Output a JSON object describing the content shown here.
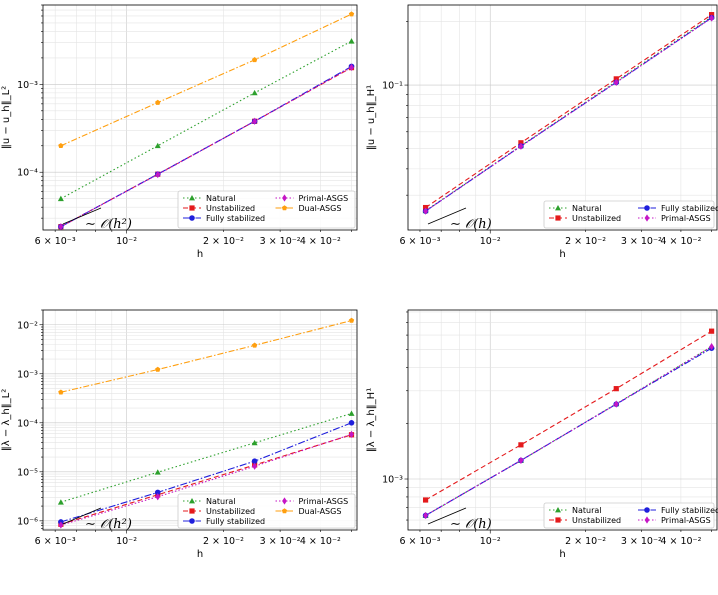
{
  "chart_data": [
    {
      "id": "p1",
      "type": "line",
      "xscale": "log",
      "yscale": "log",
      "xlabel": "h",
      "ylabel": "‖u − u_h‖_L²",
      "xlim": [
        0.0055,
        0.052
      ],
      "ylim": [
        2.2e-05,
        0.008
      ],
      "x": [
        0.00625,
        0.0125,
        0.025,
        0.05
      ],
      "xticks": [
        {
          "v": 0.006,
          "label": "6 × 10⁻³"
        },
        {
          "v": 0.01,
          "label": "10⁻²"
        },
        {
          "v": 0.02,
          "label": "2 × 10⁻²"
        },
        {
          "v": 0.03,
          "label": "3 × 10⁻²"
        },
        {
          "v": 0.04,
          "label": "4 × 10⁻²"
        }
      ],
      "yticks": [
        {
          "v": 0.0001,
          "label": "10⁻⁴"
        },
        {
          "v": 0.001,
          "label": "10⁻³"
        }
      ],
      "series": [
        {
          "name": "Natural",
          "color": "#2ca02c",
          "dash": "1.5,2.5",
          "marker": "triangle",
          "values": [
            5e-05,
            0.0002,
            0.0008,
            0.0031
          ]
        },
        {
          "name": "Unstabilized",
          "color": "#e41a1c",
          "dash": "5,3",
          "marker": "square",
          "values": [
            2.4e-05,
            9.5e-05,
            0.00038,
            0.00155
          ]
        },
        {
          "name": "Fully stabilized",
          "color": "#1f1fdc",
          "dash": "7,2,1.5,2",
          "marker": "circle",
          "values": [
            2.4e-05,
            9.5e-05,
            0.00038,
            0.0016
          ]
        },
        {
          "name": "Primal-ASGS",
          "color": "#c516c5",
          "dash": "1.5,2",
          "marker": "diamond",
          "values": [
            2.4e-05,
            9.4e-05,
            0.00038,
            0.00156
          ]
        },
        {
          "name": "Dual-ASGS",
          "color": "#ff9f0f",
          "dash": "6,2,1.5,2",
          "marker": "pentagon",
          "values": [
            0.0002,
            0.00062,
            0.0019,
            0.0063
          ]
        }
      ],
      "annotation": "∼ 𝒪(h²)",
      "legend": {
        "loc": "lower-right",
        "columns": 2
      }
    },
    {
      "id": "p2",
      "type": "line",
      "xscale": "log",
      "yscale": "log",
      "xlabel": "h",
      "ylabel": "‖u − u_h‖_H¹",
      "xlim": [
        0.0055,
        0.052
      ],
      "ylim": [
        0.0205,
        0.24
      ],
      "x": [
        0.00625,
        0.0125,
        0.025,
        0.05
      ],
      "xticks": [
        {
          "v": 0.006,
          "label": "6 × 10⁻³"
        },
        {
          "v": 0.01,
          "label": "10⁻²"
        },
        {
          "v": 0.02,
          "label": "2 × 10⁻²"
        },
        {
          "v": 0.03,
          "label": "3 × 10⁻²"
        },
        {
          "v": 0.04,
          "label": "4 × 10⁻²"
        }
      ],
      "yticks": [
        {
          "v": 0.1,
          "label": "10⁻¹"
        }
      ],
      "series": [
        {
          "name": "Natural",
          "color": "#2ca02c",
          "dash": "1.5,2.5",
          "marker": "triangle",
          "values": [
            0.0253,
            0.0515,
            0.104,
            0.211
          ]
        },
        {
          "name": "Unstabilized",
          "color": "#e41a1c",
          "dash": "5,3",
          "marker": "square",
          "values": [
            0.0262,
            0.0532,
            0.107,
            0.216
          ]
        },
        {
          "name": "Fully stabilized",
          "color": "#1f1fdc",
          "dash": "7,2,1.5,2",
          "marker": "circle",
          "values": [
            0.0252,
            0.0513,
            0.103,
            0.209
          ]
        },
        {
          "name": "Primal-ASGS",
          "color": "#c516c5",
          "dash": "1.5,2",
          "marker": "diamond",
          "values": [
            0.0252,
            0.0512,
            0.103,
            0.208
          ]
        }
      ],
      "annotation": "∼ 𝒪(h)",
      "legend": {
        "loc": "lower-right",
        "columns": 2
      }
    },
    {
      "id": "p3",
      "type": "line",
      "xscale": "log",
      "yscale": "log",
      "xlabel": "h",
      "ylabel": "‖λ − λ_h‖_L²",
      "xlim": [
        0.0055,
        0.052
      ],
      "ylim": [
        6.5e-07,
        0.02
      ],
      "x": [
        0.00625,
        0.0125,
        0.025,
        0.05
      ],
      "xticks": [
        {
          "v": 0.006,
          "label": "6 × 10⁻³"
        },
        {
          "v": 0.01,
          "label": "10⁻²"
        },
        {
          "v": 0.02,
          "label": "2 × 10⁻²"
        },
        {
          "v": 0.03,
          "label": "3 × 10⁻²"
        },
        {
          "v": 0.04,
          "label": "4 × 10⁻²"
        }
      ],
      "yticks": [
        {
          "v": 1e-06,
          "label": "10⁻⁶"
        },
        {
          "v": 1e-05,
          "label": "10⁻⁵"
        },
        {
          "v": 0.0001,
          "label": "10⁻⁴"
        },
        {
          "v": 0.001,
          "label": "10⁻³"
        },
        {
          "v": 0.01,
          "label": "10⁻²"
        }
      ],
      "series": [
        {
          "name": "Natural",
          "color": "#2ca02c",
          "dash": "1.5,2.5",
          "marker": "triangle",
          "values": [
            2.4e-06,
            9.8e-06,
            3.9e-05,
            0.000155
          ]
        },
        {
          "name": "Unstabilized",
          "color": "#e41a1c",
          "dash": "5,3",
          "marker": "square",
          "values": [
            8.5e-07,
            3.4e-06,
            1.38e-05,
            5.7e-05
          ]
        },
        {
          "name": "Fully stabilized",
          "color": "#1f1fdc",
          "dash": "7,2,1.5,2",
          "marker": "circle",
          "values": [
            9.5e-07,
            3.8e-06,
            1.65e-05,
            0.0001
          ]
        },
        {
          "name": "Primal-ASGS",
          "color": "#c516c5",
          "dash": "1.5,2",
          "marker": "diamond",
          "values": [
            8.2e-07,
            3.1e-06,
            1.3e-05,
            5.8e-05
          ]
        },
        {
          "name": "Dual-ASGS",
          "color": "#ff9f0f",
          "dash": "6,2,1.5,2",
          "marker": "pentagon",
          "values": [
            0.00042,
            0.00122,
            0.0038,
            0.0122
          ]
        }
      ],
      "annotation": "∼ 𝒪(h²)",
      "legend": {
        "loc": "lower-right",
        "columns": 2
      }
    },
    {
      "id": "p4",
      "type": "line",
      "xscale": "log",
      "yscale": "log",
      "xlabel": "h",
      "ylabel": "‖λ − λ_h‖_H¹",
      "xlim": [
        0.0055,
        0.052
      ],
      "ylim": [
        0.00053,
        0.0082
      ],
      "x": [
        0.00625,
        0.0125,
        0.025,
        0.05
      ],
      "xticks": [
        {
          "v": 0.006,
          "label": "6 × 10⁻³"
        },
        {
          "v": 0.01,
          "label": "10⁻²"
        },
        {
          "v": 0.02,
          "label": "2 × 10⁻²"
        },
        {
          "v": 0.03,
          "label": "3 × 10⁻²"
        },
        {
          "v": 0.04,
          "label": "4 × 10⁻²"
        }
      ],
      "yticks": [
        {
          "v": 0.001,
          "label": "10⁻³"
        }
      ],
      "series": [
        {
          "name": "Natural",
          "color": "#2ca02c",
          "dash": "1.5,2.5",
          "marker": "triangle",
          "values": [
            0.000635,
            0.00126,
            0.00255,
            0.0052
          ]
        },
        {
          "name": "Unstabilized",
          "color": "#e41a1c",
          "dash": "5,3",
          "marker": "square",
          "values": [
            0.00077,
            0.00153,
            0.00308,
            0.0063
          ]
        },
        {
          "name": "Fully stabilized",
          "color": "#1f1fdc",
          "dash": "7,2,1.5,2",
          "marker": "circle",
          "values": [
            0.000635,
            0.00126,
            0.00254,
            0.0051
          ]
        },
        {
          "name": "Primal-ASGS",
          "color": "#c516c5",
          "dash": "1.5,2",
          "marker": "diamond",
          "values": [
            0.000635,
            0.00126,
            0.00254,
            0.0052
          ]
        }
      ],
      "annotation": "∼ 𝒪(h)",
      "legend": {
        "loc": "lower-right",
        "columns": 2
      }
    }
  ]
}
